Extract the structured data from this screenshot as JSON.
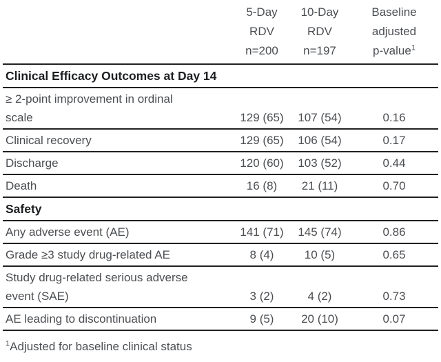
{
  "page": {
    "background": "#ffffff",
    "text_color": "#4b4e52",
    "heading_color": "#1c1e20",
    "rule_color": "#1f2022"
  },
  "header": {
    "col_5day": {
      "line1": "5-Day",
      "line2": "RDV",
      "line3": "n=200"
    },
    "col_10day": {
      "line1": "10-Day",
      "line2": "RDV",
      "line3": "n=197"
    },
    "col_pvalue": {
      "line1": "Baseline",
      "line2": "adjusted",
      "line3": "p-value",
      "superscript": "1"
    }
  },
  "sections": [
    {
      "title": "Clinical Efficacy Outcomes at Day 14",
      "rows": [
        {
          "label": "≥ 2-point improvement in ordinal",
          "label2": "scale",
          "v5": "129 (65)",
          "v10": "107 (54)",
          "p": "0.16"
        },
        {
          "label": "Clinical recovery",
          "v5": "129 (65)",
          "v10": "106 (54)",
          "p": "0.17"
        },
        {
          "label": "Discharge",
          "v5": "120 (60)",
          "v10": "103 (52)",
          "p": "0.44"
        },
        {
          "label": "Death",
          "v5": "16 (8)",
          "v10": "21 (11)",
          "p": "0.70"
        }
      ]
    },
    {
      "title": "Safety",
      "rows": [
        {
          "label": "Any adverse event (AE)",
          "v5": "141 (71)",
          "v10": "145 (74)",
          "p": "0.86"
        },
        {
          "label": "Grade ≥3 study drug-related AE",
          "v5": "8 (4)",
          "v10": "10 (5)",
          "p": "0.65"
        },
        {
          "label": "Study drug-related serious adverse",
          "label2": "event (SAE)",
          "v5": "3 (2)",
          "v10": "4 (2)",
          "p": "0.73"
        },
        {
          "label": "AE leading to discontinuation",
          "v5": "9 (5)",
          "v10": "20 (10)",
          "p": "0.07"
        }
      ]
    }
  ],
  "footnote": {
    "superscript": "1",
    "text": "Adjusted for baseline clinical status"
  }
}
